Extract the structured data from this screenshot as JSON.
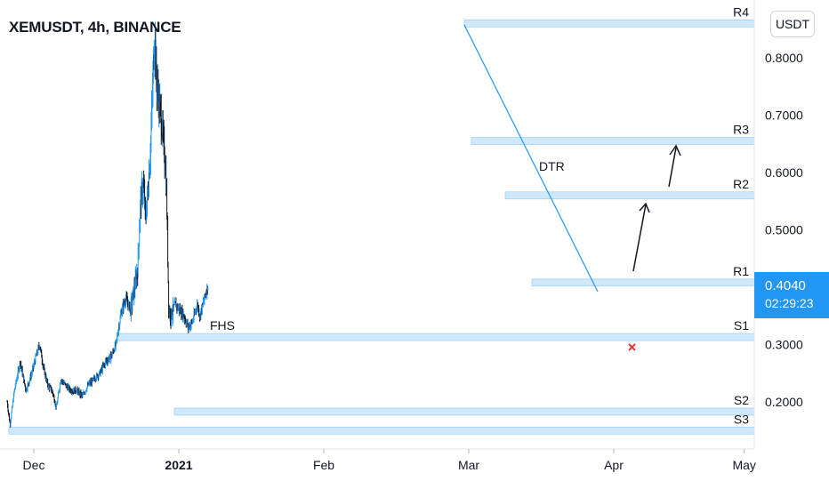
{
  "chart_data": {
    "type": "candlestick",
    "title": "XEMUSDT, 4h, BINANCE",
    "unit": "USDT",
    "x_ticks": [
      "Dec",
      "2021",
      "Feb",
      "Mar",
      "Apr",
      "May"
    ],
    "y_ticks": [
      "0.2000",
      "0.3000",
      "0.4000",
      "0.5000",
      "0.6000",
      "0.7000",
      "0.8000"
    ],
    "ylim": [
      0.14,
      0.88
    ],
    "last_price": "0.4040",
    "countdown": "02:29:23",
    "levels": [
      {
        "label": "R4",
        "value": 0.86
      },
      {
        "label": "R3",
        "value": 0.655
      },
      {
        "label": "R2",
        "value": 0.56
      },
      {
        "label": "R1",
        "value": 0.408
      },
      {
        "label": "S1",
        "value": 0.313
      },
      {
        "label": "S2",
        "value": 0.183
      },
      {
        "label": "S3",
        "value": 0.15
      }
    ],
    "annotations": [
      "FHS",
      "DTR"
    ],
    "price_path": [
      [
        0.0,
        0.2
      ],
      [
        0.02,
        0.16
      ],
      [
        0.05,
        0.22
      ],
      [
        0.09,
        0.27
      ],
      [
        0.13,
        0.22
      ],
      [
        0.17,
        0.25
      ],
      [
        0.2,
        0.28
      ],
      [
        0.225,
        0.3
      ],
      [
        0.25,
        0.26
      ],
      [
        0.28,
        0.23
      ],
      [
        0.31,
        0.22
      ],
      [
        0.34,
        0.19
      ],
      [
        0.37,
        0.24
      ],
      [
        0.4,
        0.23
      ],
      [
        0.44,
        0.22
      ],
      [
        0.48,
        0.22
      ],
      [
        0.52,
        0.21
      ],
      [
        0.56,
        0.23
      ],
      [
        0.6,
        0.24
      ],
      [
        0.64,
        0.25
      ],
      [
        0.68,
        0.27
      ],
      [
        0.72,
        0.28
      ],
      [
        0.75,
        0.3
      ],
      [
        0.79,
        0.36
      ],
      [
        0.82,
        0.38
      ],
      [
        0.85,
        0.36
      ],
      [
        0.88,
        0.4
      ],
      [
        0.9,
        0.43
      ],
      [
        0.92,
        0.55
      ],
      [
        0.94,
        0.58
      ],
      [
        0.955,
        0.52
      ],
      [
        0.97,
        0.56
      ],
      [
        0.985,
        0.62
      ],
      [
        1.0,
        0.72
      ],
      [
        1.01,
        0.8
      ],
      [
        1.02,
        0.84
      ],
      [
        1.03,
        0.76
      ],
      [
        1.045,
        0.73
      ],
      [
        1.06,
        0.7
      ],
      [
        1.075,
        0.66
      ],
      [
        1.09,
        0.62
      ],
      [
        1.1,
        0.56
      ],
      [
        1.115,
        0.36
      ],
      [
        1.13,
        0.35
      ],
      [
        1.16,
        0.37
      ],
      [
        1.19,
        0.36
      ],
      [
        1.22,
        0.35
      ],
      [
        1.25,
        0.33
      ],
      [
        1.28,
        0.34
      ],
      [
        1.31,
        0.37
      ],
      [
        1.33,
        0.35
      ],
      [
        1.36,
        0.38
      ],
      [
        1.385,
        0.404
      ]
    ]
  }
}
